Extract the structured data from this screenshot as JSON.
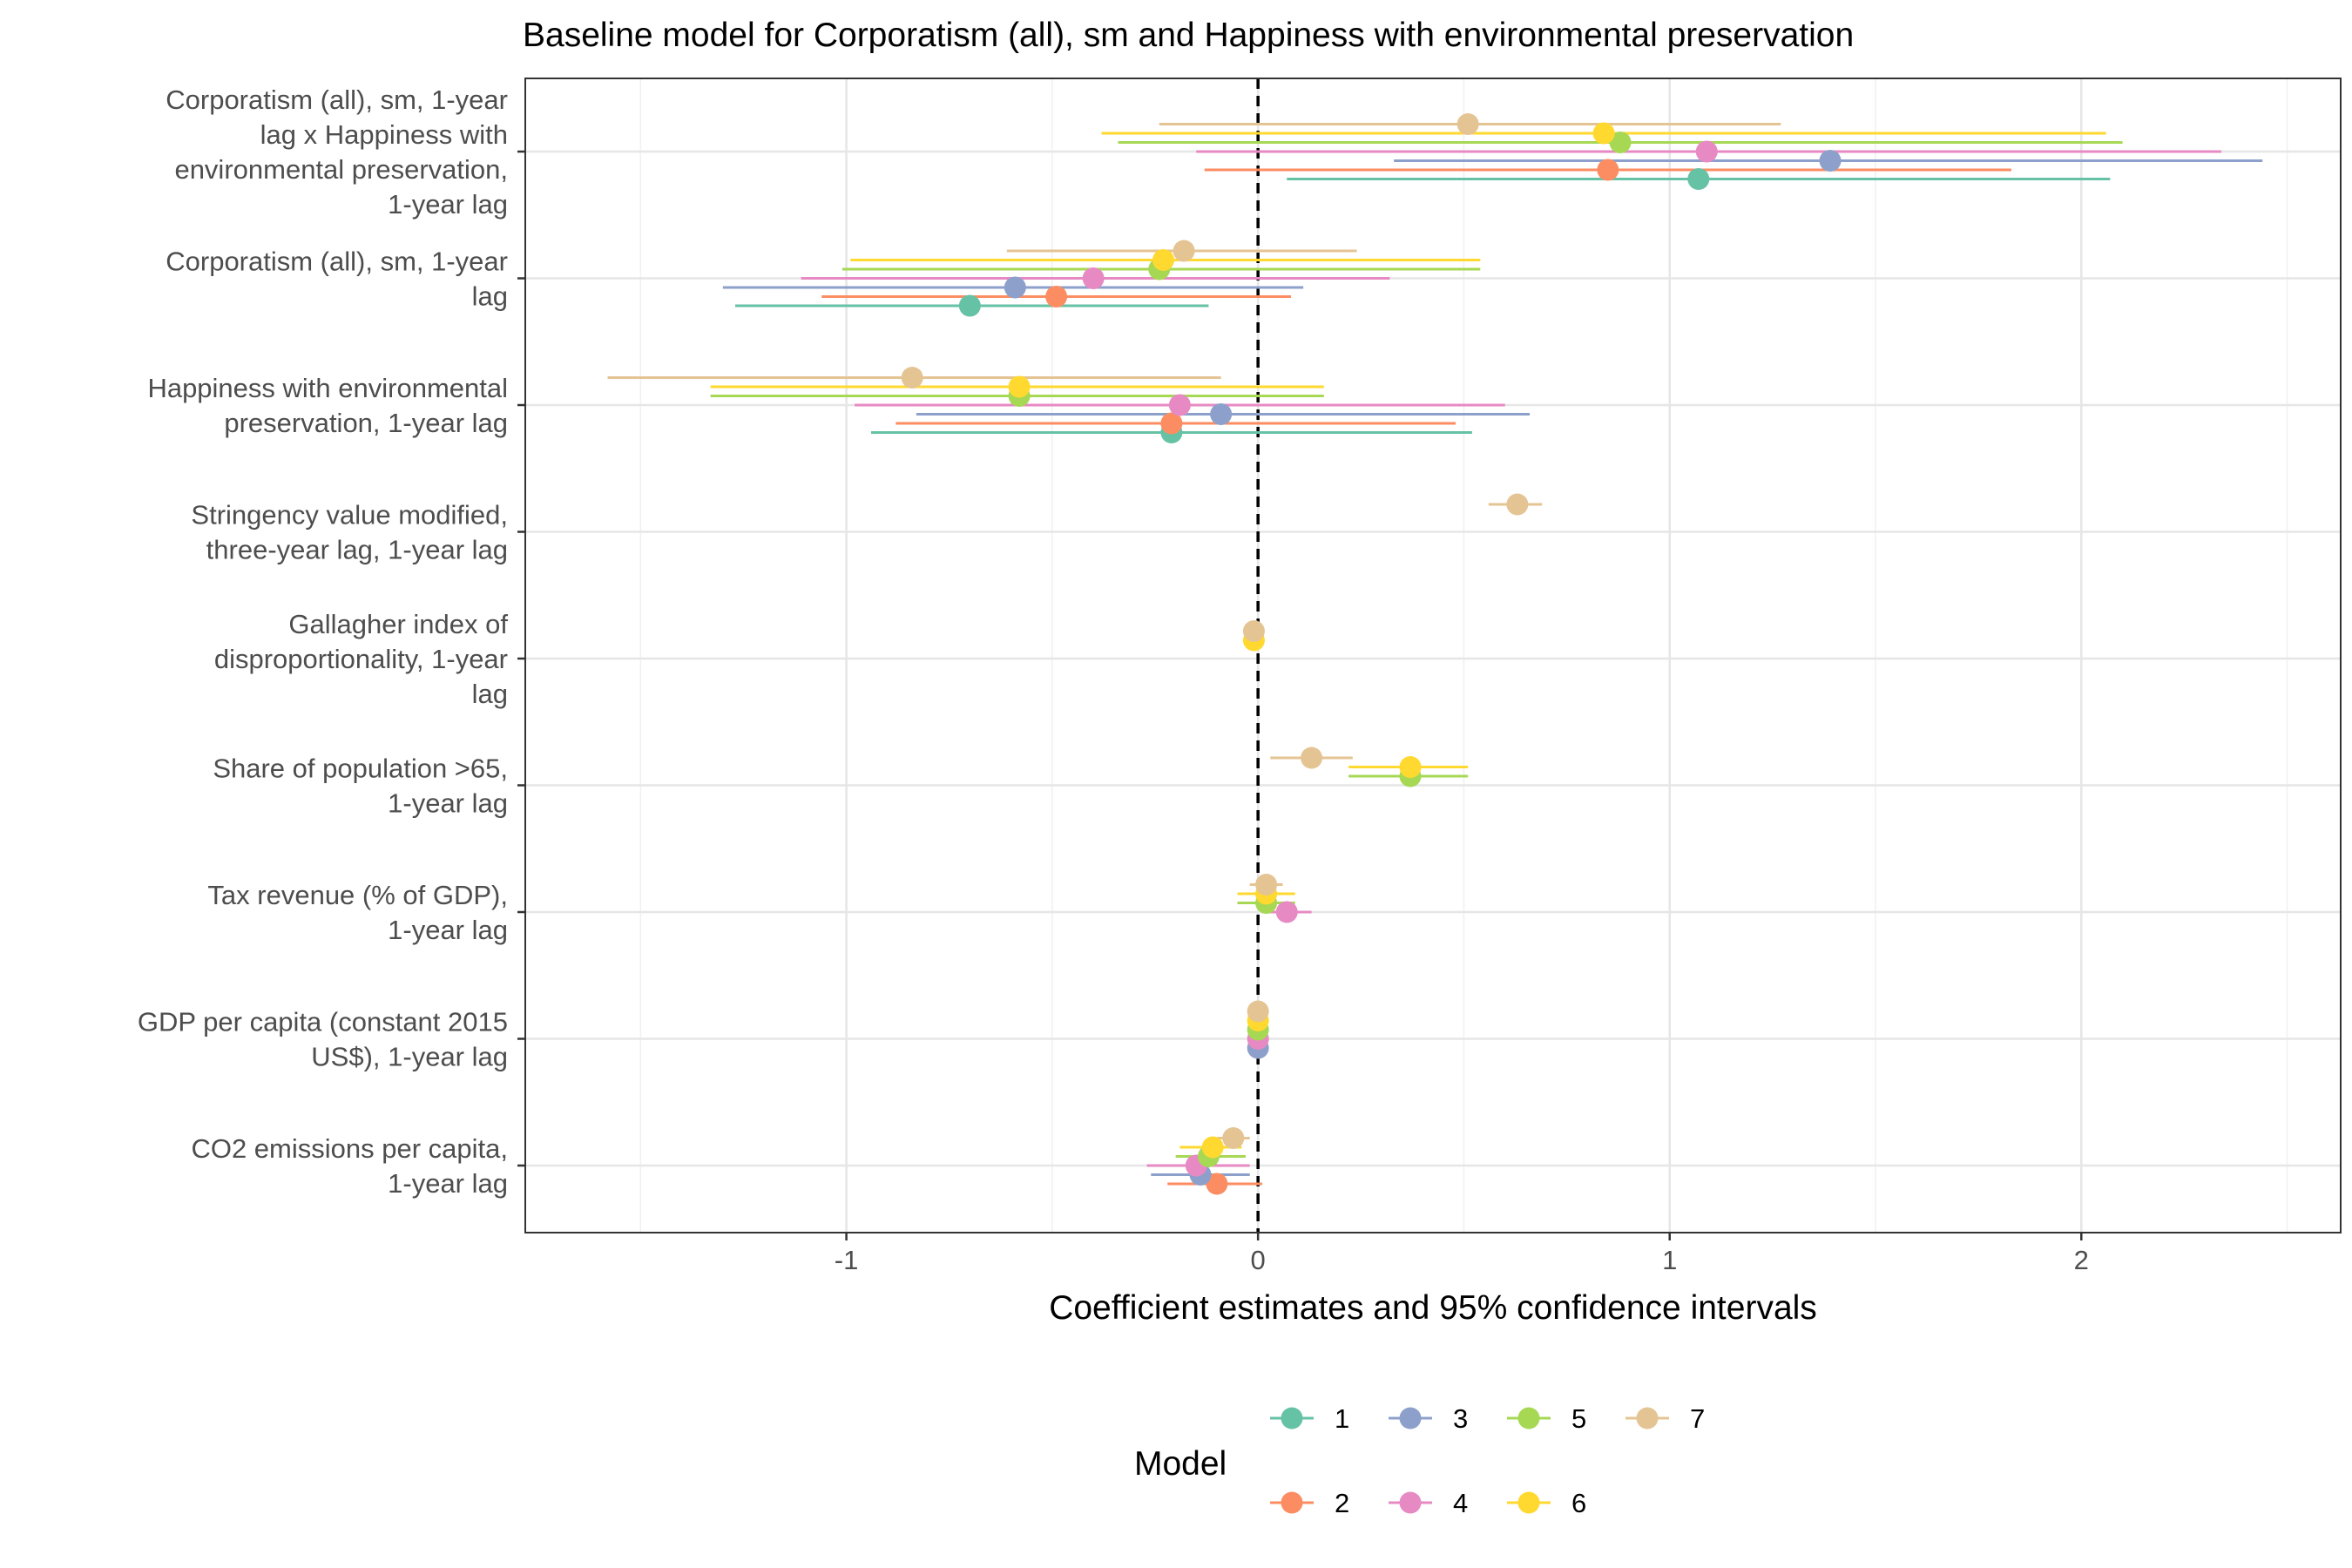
{
  "chart_data": {
    "type": "scatter",
    "subtype": "coefficient-plot-with-error-bars",
    "title": "Baseline model for Corporatism (all), sm and Happiness with environmental preservation",
    "xlabel": "Coefficient estimates and 95% confidence intervals",
    "ylabel": "",
    "xlim": [
      -1.78,
      2.63
    ],
    "x_ticks": [
      -1,
      0,
      1,
      2
    ],
    "x_tick_labels": [
      "-1",
      "0",
      "1",
      "2"
    ],
    "reference_line": 0,
    "grid": true,
    "legend": {
      "title": "Model",
      "position": "bottom"
    },
    "series": [
      {
        "name": "1",
        "color": "#66C2A5"
      },
      {
        "name": "2",
        "color": "#FC8D62"
      },
      {
        "name": "3",
        "color": "#8DA0CB"
      },
      {
        "name": "4",
        "color": "#E78AC3"
      },
      {
        "name": "5",
        "color": "#A6D854"
      },
      {
        "name": "6",
        "color": "#FFD92F"
      },
      {
        "name": "7",
        "color": "#E5C494"
      }
    ],
    "terms": [
      {
        "label": [
          "Corporatism (all), sm, 1-year",
          "lag x Happiness with",
          "environmental preservation,",
          "1-year lag"
        ],
        "estimates": [
          {
            "model": "1",
            "est": 1.07,
            "lo": 0.07,
            "hi": 2.07
          },
          {
            "model": "2",
            "est": 0.85,
            "lo": -0.13,
            "hi": 1.83
          },
          {
            "model": "3",
            "est": 1.39,
            "lo": 0.33,
            "hi": 2.44
          },
          {
            "model": "4",
            "est": 1.09,
            "lo": -0.15,
            "hi": 2.34
          },
          {
            "model": "5",
            "est": 0.88,
            "lo": -0.34,
            "hi": 2.1
          },
          {
            "model": "6",
            "est": 0.84,
            "lo": -0.38,
            "hi": 2.06
          },
          {
            "model": "7",
            "est": 0.51,
            "lo": -0.24,
            "hi": 1.27
          }
        ]
      },
      {
        "label": [
          "Corporatism (all), sm, 1-year",
          "lag"
        ],
        "estimates": [
          {
            "model": "1",
            "est": -0.7,
            "lo": -1.27,
            "hi": -0.12
          },
          {
            "model": "2",
            "est": -0.49,
            "lo": -1.06,
            "hi": 0.08
          },
          {
            "model": "3",
            "est": -0.59,
            "lo": -1.3,
            "hi": 0.11
          },
          {
            "model": "4",
            "est": -0.4,
            "lo": -1.11,
            "hi": 0.32
          },
          {
            "model": "5",
            "est": -0.24,
            "lo": -1.01,
            "hi": 0.54
          },
          {
            "model": "6",
            "est": -0.23,
            "lo": -0.99,
            "hi": 0.54
          },
          {
            "model": "7",
            "est": -0.18,
            "lo": -0.61,
            "hi": 0.24
          }
        ]
      },
      {
        "label": [
          "Happiness with environmental",
          "preservation, 1-year lag"
        ],
        "estimates": [
          {
            "model": "1",
            "est": -0.21,
            "lo": -0.94,
            "hi": 0.52
          },
          {
            "model": "2",
            "est": -0.21,
            "lo": -0.88,
            "hi": 0.48
          },
          {
            "model": "3",
            "est": -0.09,
            "lo": -0.83,
            "hi": 0.66
          },
          {
            "model": "4",
            "est": -0.19,
            "lo": -0.98,
            "hi": 0.6
          },
          {
            "model": "5",
            "est": -0.58,
            "lo": -1.33,
            "hi": 0.16
          },
          {
            "model": "6",
            "est": -0.58,
            "lo": -1.33,
            "hi": 0.16
          },
          {
            "model": "7",
            "est": -0.84,
            "lo": -1.58,
            "hi": -0.09
          }
        ]
      },
      {
        "label": [
          "Stringency value modified,",
          "three-year lag, 1-year lag"
        ],
        "estimates": [
          {
            "model": "7",
            "est": 0.63,
            "lo": 0.56,
            "hi": 0.69
          }
        ]
      },
      {
        "label": [
          "Gallagher index of",
          "disproportionality, 1-year",
          "lag"
        ],
        "estimates": [
          {
            "model": "6",
            "est": -0.01,
            "lo": -0.02,
            "hi": 0.0
          },
          {
            "model": "7",
            "est": -0.01,
            "lo": -0.02,
            "hi": 0.0
          }
        ]
      },
      {
        "label": [
          "Share of population >65,",
          "1-year lag"
        ],
        "estimates": [
          {
            "model": "5",
            "est": 0.37,
            "lo": 0.22,
            "hi": 0.51
          },
          {
            "model": "6",
            "est": 0.37,
            "lo": 0.22,
            "hi": 0.51
          },
          {
            "model": "7",
            "est": 0.13,
            "lo": 0.03,
            "hi": 0.23
          }
        ]
      },
      {
        "label": [
          "Tax revenue (% of GDP),",
          "1-year lag"
        ],
        "estimates": [
          {
            "model": "4",
            "est": 0.07,
            "lo": 0.01,
            "hi": 0.13
          },
          {
            "model": "5",
            "est": 0.02,
            "lo": -0.05,
            "hi": 0.09
          },
          {
            "model": "6",
            "est": 0.02,
            "lo": -0.05,
            "hi": 0.09
          },
          {
            "model": "7",
            "est": 0.02,
            "lo": -0.02,
            "hi": 0.06
          }
        ]
      },
      {
        "label": [
          "GDP per capita (constant 2015",
          "US$), 1-year lag"
        ],
        "estimates": [
          {
            "model": "3",
            "est": 0.0,
            "lo": 0.0,
            "hi": 0.0
          },
          {
            "model": "4",
            "est": 0.0,
            "lo": 0.0,
            "hi": 0.0
          },
          {
            "model": "5",
            "est": 0.0,
            "lo": 0.0,
            "hi": 0.0
          },
          {
            "model": "6",
            "est": 0.0,
            "lo": 0.0,
            "hi": 0.0
          },
          {
            "model": "7",
            "est": 0.0,
            "lo": 0.0,
            "hi": 0.0
          }
        ]
      },
      {
        "label": [
          "CO2 emissions per capita,",
          "1-year lag"
        ],
        "estimates": [
          {
            "model": "2",
            "est": -0.1,
            "lo": -0.22,
            "hi": 0.01
          },
          {
            "model": "3",
            "est": -0.14,
            "lo": -0.26,
            "hi": -0.02
          },
          {
            "model": "4",
            "est": -0.15,
            "lo": -0.27,
            "hi": -0.02
          },
          {
            "model": "5",
            "est": -0.12,
            "lo": -0.2,
            "hi": -0.03
          },
          {
            "model": "6",
            "est": -0.11,
            "lo": -0.19,
            "hi": -0.04
          },
          {
            "model": "7",
            "est": -0.06,
            "lo": -0.1,
            "hi": -0.02
          }
        ]
      }
    ]
  }
}
